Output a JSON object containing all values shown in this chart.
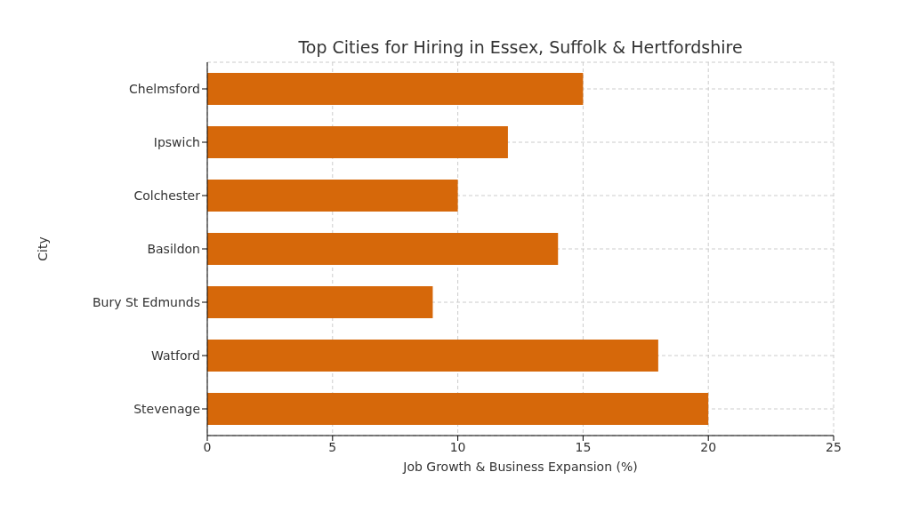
{
  "chart_data": {
    "type": "bar",
    "orientation": "horizontal",
    "title": "Top Cities for Hiring in Essex, Suffolk & Hertfordshire",
    "xlabel": "Job Growth & Business Expansion (%)",
    "ylabel": "City",
    "categories": [
      "Chelmsford",
      "Ipswich",
      "Colchester",
      "Basildon",
      "Bury St Edmunds",
      "Watford",
      "Stevenage"
    ],
    "values": [
      15,
      12,
      10,
      14,
      9,
      18,
      20
    ],
    "color": "#d6680a",
    "xlim": [
      0,
      25
    ],
    "xticks": [
      0,
      5,
      10,
      15,
      20,
      25
    ],
    "grid": true
  }
}
